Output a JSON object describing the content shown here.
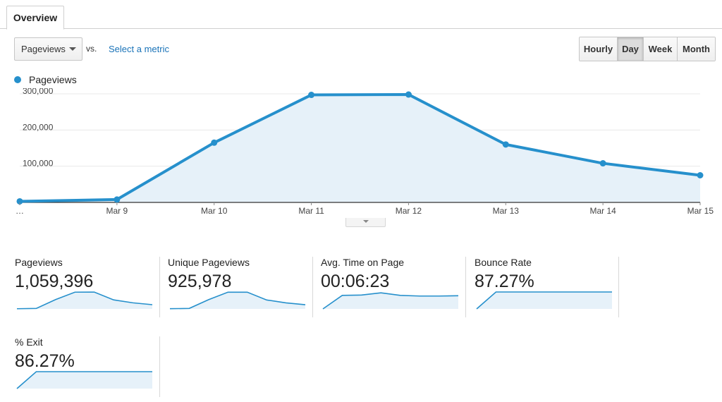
{
  "tabs": {
    "overview": "Overview"
  },
  "toolbar": {
    "metric_select": "Pageviews",
    "vs": "vs.",
    "select_metric": "Select a metric",
    "ranges": [
      "Hourly",
      "Day",
      "Week",
      "Month"
    ],
    "active_range": "Day"
  },
  "colors": {
    "series": "#2690cc",
    "fill": "#e6f1f9",
    "link": "#1a73b8"
  },
  "chart_data": {
    "type": "area",
    "series": [
      {
        "name": "Pageviews",
        "values": [
          3000,
          8000,
          165000,
          297000,
          298000,
          160000,
          108000,
          75000
        ]
      }
    ],
    "categories": [
      "…",
      "Mar 9",
      "Mar 10",
      "Mar 11",
      "Mar 12",
      "Mar 13",
      "Mar 14",
      "Mar 15"
    ],
    "yticks": [
      "100,000",
      "200,000",
      "300,000"
    ],
    "ytick_values": [
      100000,
      200000,
      300000
    ],
    "ylim": [
      0,
      300000
    ],
    "grid": true,
    "legend": "top-left"
  },
  "metrics": [
    {
      "label": "Pageviews",
      "value": "1,059,396",
      "spark": [
        3,
        8,
        165,
        297,
        298,
        160,
        108,
        75
      ],
      "spark_max": 300
    },
    {
      "label": "Unique Pageviews",
      "value": "925,978",
      "spark": [
        3,
        8,
        145,
        262,
        262,
        140,
        95,
        66
      ],
      "spark_max": 265
    },
    {
      "label": "Avg. Time on Page",
      "value": "00:06:23",
      "spark": [
        0,
        80,
        82,
        95,
        80,
        76,
        76,
        78
      ],
      "spark_max": 100
    },
    {
      "label": "Bounce Rate",
      "value": "87.27%",
      "spark": [
        0,
        100,
        100,
        100,
        100,
        100,
        100,
        100
      ],
      "spark_max": 100
    },
    {
      "label": "% Exit",
      "value": "86.27%",
      "spark": [
        0,
        100,
        100,
        100,
        100,
        100,
        100,
        100
      ],
      "spark_max": 100
    }
  ]
}
